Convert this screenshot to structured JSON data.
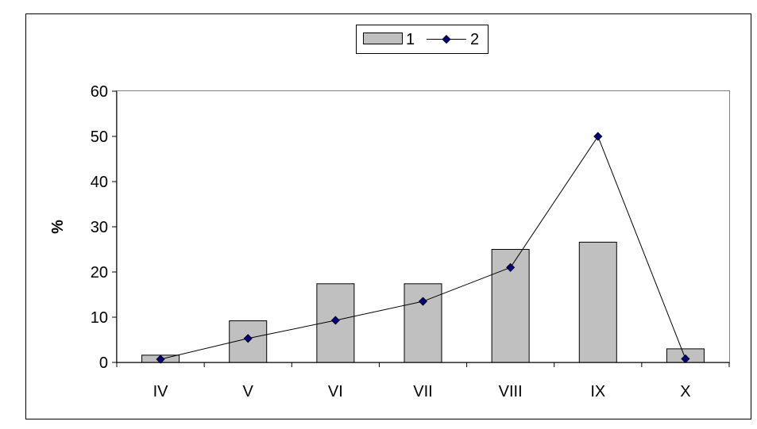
{
  "chart_data": {
    "type": "bar",
    "categories": [
      "IV",
      "V",
      "VI",
      "VII",
      "VIII",
      "IX",
      "X"
    ],
    "series": [
      {
        "name": "1",
        "render": "bar",
        "color": "#c0c0c0",
        "values": [
          1.6,
          9.2,
          17.4,
          17.4,
          25.0,
          26.6,
          3.0
        ]
      },
      {
        "name": "2",
        "render": "line",
        "color": "#000080",
        "values": [
          0.7,
          5.3,
          9.3,
          13.5,
          21.0,
          50.0,
          0.8
        ]
      }
    ],
    "title": "",
    "xlabel": "",
    "ylabel": "%",
    "ylim": [
      0,
      60
    ],
    "yticks": [
      0,
      10,
      20,
      30,
      40,
      50,
      60
    ],
    "grid": false,
    "legend_position": "top-center"
  }
}
